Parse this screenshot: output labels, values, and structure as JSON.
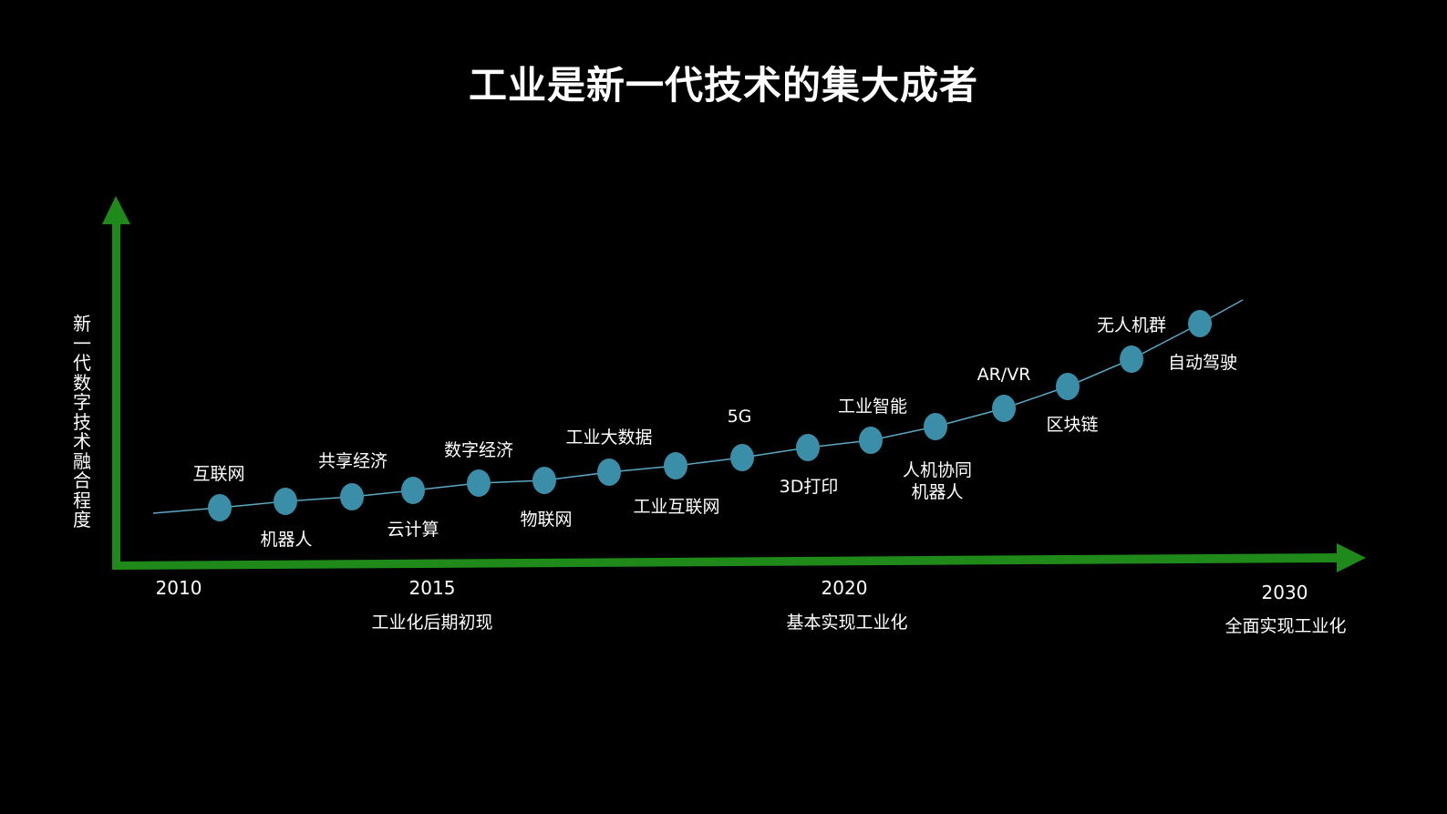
{
  "title": "工业是新一代技术的集大成者",
  "y_axis_label": "新一代数字技术融合程度",
  "colors": {
    "background": "#000000",
    "axis": "#1f8a1a",
    "node": "#3b8ea8",
    "curve": "#5aa9c4",
    "text": "#ffffff"
  },
  "technologies": [
    "互联网",
    "机器人",
    "共享经济",
    "云计算",
    "数字经济",
    "物联网",
    "工业大数据",
    "工业互联网",
    "5G",
    "3D打印",
    "工业智能",
    "人机协同",
    "机器人",
    "AR/VR",
    "区块链",
    "无人机群",
    "自动驾驶"
  ],
  "years": [
    "2010",
    "2015",
    "2020",
    "2030"
  ],
  "phases": [
    "工业化后期初现",
    "基本实现工业化",
    "全面实现工业化"
  ]
}
